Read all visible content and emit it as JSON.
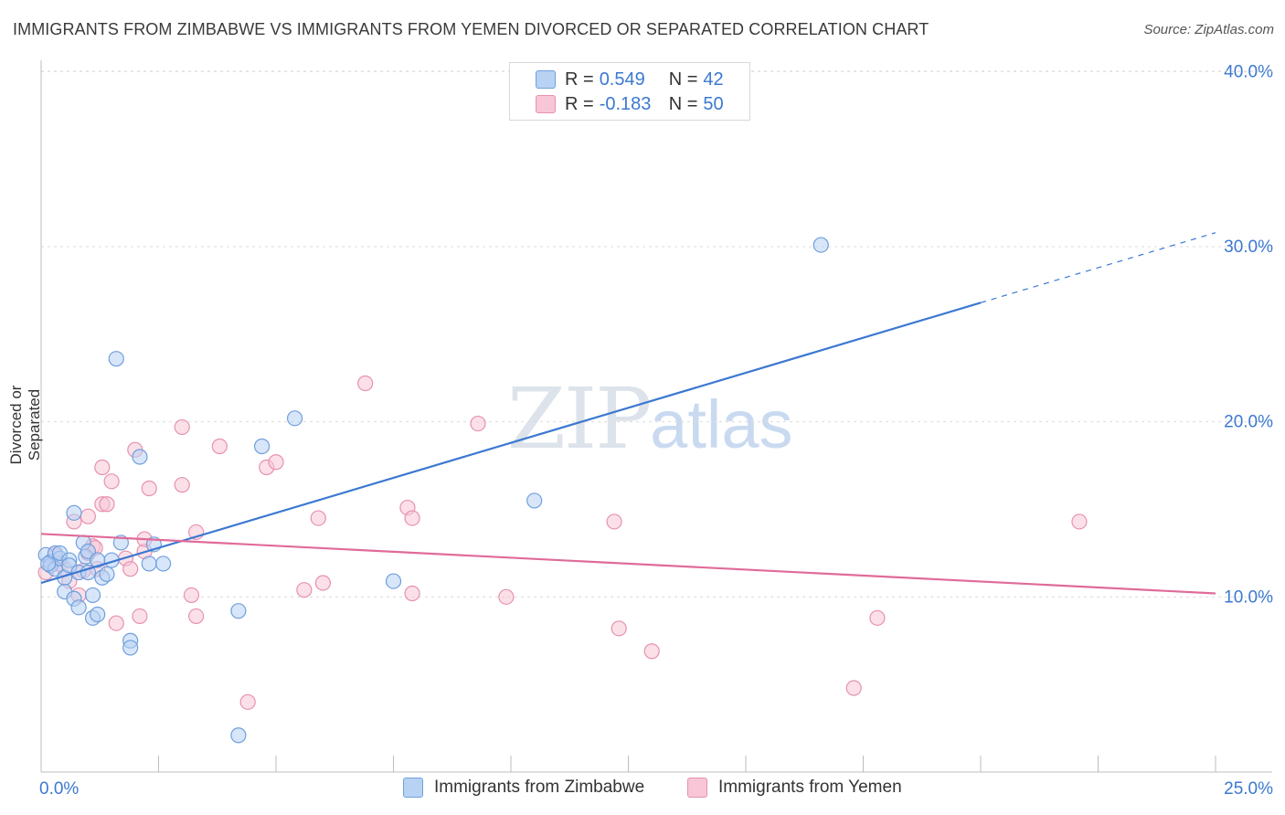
{
  "title": "IMMIGRANTS FROM ZIMBABWE VS IMMIGRANTS FROM YEMEN DIVORCED OR SEPARATED CORRELATION CHART",
  "source": "Source: ZipAtlas.com",
  "legend_top": {
    "rows": [
      {
        "r_label": "R =",
        "r_value": "0.549",
        "n_label": "N =",
        "n_value": "42"
      },
      {
        "r_label": "R =",
        "r_value": "-0.183",
        "n_label": "N =",
        "n_value": "50"
      }
    ]
  },
  "watermark": {
    "zip": "ZIP",
    "atlas": "atlas"
  },
  "colors": {
    "zimbabwe": "#3b78d1",
    "yemen": "#e06b99",
    "zimbabwe_fill": "#b8d2f4",
    "yemen_fill": "#f8c6d6",
    "tick_label": "#3b78d1"
  },
  "chart_data": {
    "type": "scatter",
    "title": "IMMIGRANTS FROM ZIMBABWE VS IMMIGRANTS FROM YEMEN DIVORCED OR SEPARATED CORRELATION CHART",
    "xlabel": "",
    "ylabel": "Divorced or Separated",
    "xlim": [
      0,
      25
    ],
    "ylim": [
      0,
      40
    ],
    "x_tick_labels": [
      "0.0%",
      "25.0%"
    ],
    "y_ticks": [
      10,
      20,
      30,
      40
    ],
    "y_tick_labels": [
      "10.0%",
      "20.0%",
      "30.0%",
      "40.0%"
    ],
    "grid": true,
    "legend_position": "bottom",
    "series": [
      {
        "name": "Immigrants from Zimbabwe",
        "r": 0.549,
        "n": 42,
        "trend": {
          "x0": 0.0,
          "y0": 10.8,
          "x1": 20.0,
          "y1": 26.8,
          "dash_to_x": 25.0,
          "dash_to_y": 30.8
        },
        "points": [
          [
            0.1,
            12.4
          ],
          [
            0.2,
            12.0
          ],
          [
            0.2,
            11.8
          ],
          [
            0.3,
            12.5
          ],
          [
            0.3,
            11.6
          ],
          [
            0.4,
            12.2
          ],
          [
            0.4,
            12.5
          ],
          [
            0.5,
            11.1
          ],
          [
            0.5,
            10.3
          ],
          [
            0.6,
            12.1
          ],
          [
            0.6,
            11.8
          ],
          [
            0.7,
            9.9
          ],
          [
            0.7,
            14.8
          ],
          [
            0.8,
            9.4
          ],
          [
            0.8,
            11.4
          ],
          [
            0.9,
            13.1
          ],
          [
            0.95,
            12.3
          ],
          [
            1.0,
            11.4
          ],
          [
            1.0,
            12.6
          ],
          [
            1.1,
            8.8
          ],
          [
            1.1,
            10.1
          ],
          [
            1.2,
            9.0
          ],
          [
            1.2,
            12.1
          ],
          [
            1.3,
            11.1
          ],
          [
            1.4,
            11.3
          ],
          [
            1.5,
            12.1
          ],
          [
            1.6,
            23.6
          ],
          [
            1.7,
            13.1
          ],
          [
            1.9,
            7.5
          ],
          [
            1.9,
            7.1
          ],
          [
            2.1,
            18.0
          ],
          [
            2.3,
            11.9
          ],
          [
            2.4,
            13.0
          ],
          [
            2.6,
            11.9
          ],
          [
            4.2,
            2.1
          ],
          [
            4.2,
            9.2
          ],
          [
            4.7,
            18.6
          ],
          [
            5.4,
            20.2
          ],
          [
            7.5,
            10.9
          ],
          [
            10.5,
            15.5
          ],
          [
            16.6,
            30.1
          ],
          [
            0.15,
            11.9
          ]
        ]
      },
      {
        "name": "Immigrants from Yemen",
        "r": -0.183,
        "n": 50,
        "trend": {
          "x0": 0.0,
          "y0": 13.6,
          "x1": 25.0,
          "y1": 10.2
        },
        "points": [
          [
            0.1,
            11.4
          ],
          [
            0.2,
            11.8
          ],
          [
            0.3,
            12.4
          ],
          [
            0.4,
            11.9
          ],
          [
            0.5,
            11.6
          ],
          [
            0.6,
            10.9
          ],
          [
            0.7,
            14.3
          ],
          [
            0.8,
            10.1
          ],
          [
            0.9,
            11.5
          ],
          [
            1.0,
            14.6
          ],
          [
            1.0,
            12.5
          ],
          [
            1.1,
            12.9
          ],
          [
            1.2,
            11.6
          ],
          [
            1.3,
            17.4
          ],
          [
            1.3,
            15.3
          ],
          [
            1.4,
            15.3
          ],
          [
            1.5,
            16.6
          ],
          [
            1.6,
            8.5
          ],
          [
            1.8,
            12.2
          ],
          [
            1.9,
            11.6
          ],
          [
            2.0,
            18.4
          ],
          [
            2.1,
            8.9
          ],
          [
            2.2,
            12.6
          ],
          [
            2.2,
            13.3
          ],
          [
            2.3,
            16.2
          ],
          [
            3.0,
            16.4
          ],
          [
            3.0,
            19.7
          ],
          [
            3.2,
            10.1
          ],
          [
            3.3,
            13.7
          ],
          [
            3.3,
            8.9
          ],
          [
            3.8,
            18.6
          ],
          [
            4.4,
            4.0
          ],
          [
            4.8,
            17.4
          ],
          [
            5.0,
            17.7
          ],
          [
            5.6,
            10.4
          ],
          [
            5.9,
            14.5
          ],
          [
            6.0,
            10.8
          ],
          [
            6.9,
            22.2
          ],
          [
            7.8,
            15.1
          ],
          [
            7.9,
            14.5
          ],
          [
            7.9,
            10.2
          ],
          [
            9.3,
            19.9
          ],
          [
            9.9,
            10.0
          ],
          [
            12.2,
            14.3
          ],
          [
            12.3,
            8.2
          ],
          [
            13.0,
            6.9
          ],
          [
            17.3,
            4.8
          ],
          [
            17.8,
            8.8
          ],
          [
            22.1,
            14.3
          ],
          [
            1.15,
            12.8
          ]
        ]
      }
    ]
  },
  "bottom_legend": {
    "zimbabwe_label": "Immigrants from Zimbabwe",
    "yemen_label": "Immigrants from Yemen"
  }
}
